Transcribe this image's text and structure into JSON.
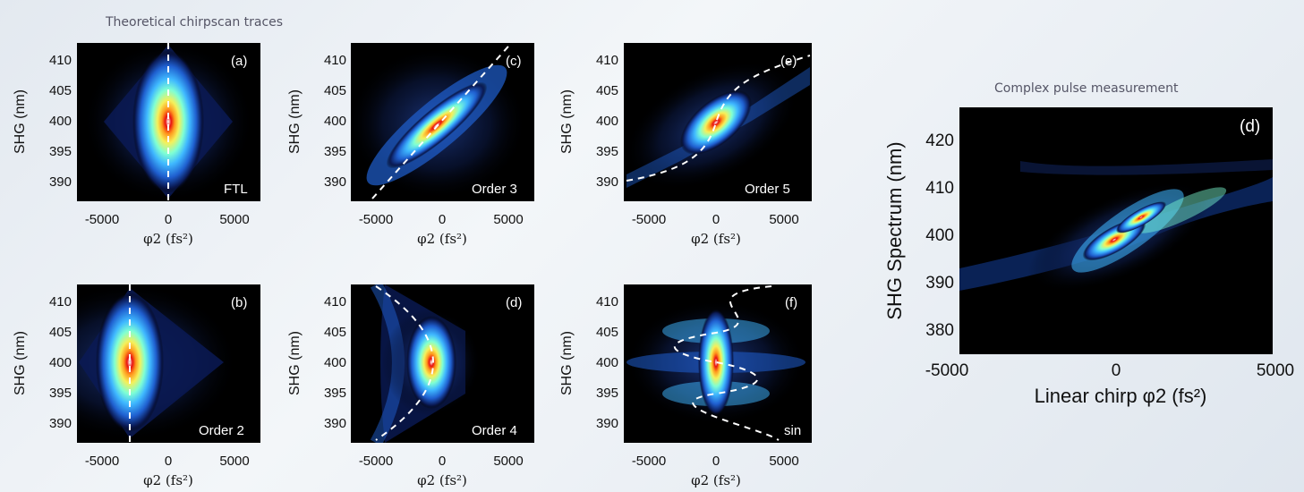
{
  "captions": {
    "left": "Theoretical chirpscan traces",
    "right": "Complex pulse measurement"
  },
  "colors": {
    "colormap": [
      "#000000",
      "#0a1a55",
      "#1f5fcf",
      "#3fb8ff",
      "#7fffd4",
      "#f5f05a",
      "#ff9a1e",
      "#e81010",
      "#ffffff"
    ]
  },
  "chart_data": [
    {
      "type": "heatmap",
      "panel": "(a)",
      "label": "FTL",
      "xlabel": "φ2 (fs²)",
      "ylabel": "SHG (nm)",
      "xlim": [
        -7000,
        7000
      ],
      "ylim": [
        386,
        413
      ],
      "xticks": [
        "-5000",
        "0",
        "5000"
      ],
      "yticks": [
        "410",
        "405",
        "400",
        "395",
        "390"
      ],
      "overlay": "vertical line at φ2 = 0",
      "peak": {
        "x": 0,
        "y": 400
      }
    },
    {
      "type": "heatmap",
      "panel": "(b)",
      "label": "Order 2",
      "xlabel": "φ2 (fs²)",
      "ylabel": "SHG (nm)",
      "xlim": [
        -7000,
        7000
      ],
      "ylim": [
        386,
        413
      ],
      "xticks": [
        "-5000",
        "0",
        "5000"
      ],
      "yticks": [
        "410",
        "405",
        "400",
        "395",
        "390"
      ],
      "overlay": "vertical line at φ2 ≈ -3000",
      "peak": {
        "x": -3000,
        "y": 400
      }
    },
    {
      "type": "heatmap",
      "panel": "(c)",
      "label": "Order 3",
      "xlabel": "φ2 (fs²)",
      "ylabel": "SHG (nm)",
      "xlim": [
        -7000,
        7000
      ],
      "ylim": [
        386,
        413
      ],
      "xticks": [
        "-5000",
        "0",
        "5000"
      ],
      "yticks": [
        "410",
        "405",
        "400",
        "395",
        "390"
      ],
      "overlay": "straight line from (-5000,387) to (5000,413)",
      "peak": {
        "x": -500,
        "y": 399
      }
    },
    {
      "type": "heatmap",
      "panel": "(d)",
      "label": "Order 4",
      "xlabel": "φ2 (fs²)",
      "ylabel": "SHG (nm)",
      "xlim": [
        -7000,
        7000
      ],
      "ylim": [
        386,
        413
      ],
      "xticks": [
        "-5000",
        "0",
        "5000"
      ],
      "yticks": [
        "410",
        "405",
        "400",
        "395",
        "390"
      ],
      "overlay": "parabola with vertex near (-800,400)",
      "peak": {
        "x": -800,
        "y": 400
      }
    },
    {
      "type": "heatmap",
      "panel": "(e)",
      "label": "Order 5",
      "xlabel": "φ2 (fs²)",
      "ylabel": "SHG (nm)",
      "xlim": [
        -7000,
        7000
      ],
      "ylim": [
        386,
        413
      ],
      "xticks": [
        "-5000",
        "0",
        "5000"
      ],
      "yticks": [
        "410",
        "405",
        "400",
        "395",
        "390"
      ],
      "overlay": "cubic curve through (0,400)",
      "peak": {
        "x": 0,
        "y": 400
      }
    },
    {
      "type": "heatmap",
      "panel": "(f)",
      "label": "sin",
      "xlabel": "φ2 (fs²)",
      "ylabel": "SHG (nm)",
      "xlim": [
        -7000,
        7000
      ],
      "ylim": [
        386,
        413
      ],
      "xticks": [
        "-5000",
        "0",
        "5000"
      ],
      "yticks": [
        "410",
        "405",
        "400",
        "395",
        "390"
      ],
      "overlay": "sinusoidal curve about φ2 = 0",
      "peak": {
        "x": 0,
        "y": 400
      }
    },
    {
      "type": "heatmap",
      "panel": "(d)",
      "label": "",
      "xlabel": "Linear chirp φ2 (fs²)",
      "ylabel": "SHG Spectrum (nm)",
      "xlim": [
        -5000,
        5000
      ],
      "ylim": [
        375,
        426
      ],
      "xticks": [
        "-5000",
        "0",
        "5000"
      ],
      "yticks": [
        "420",
        "410",
        "400",
        "390",
        "380"
      ],
      "overlay": "none",
      "peak": {
        "x": 0,
        "y": 398
      }
    }
  ]
}
